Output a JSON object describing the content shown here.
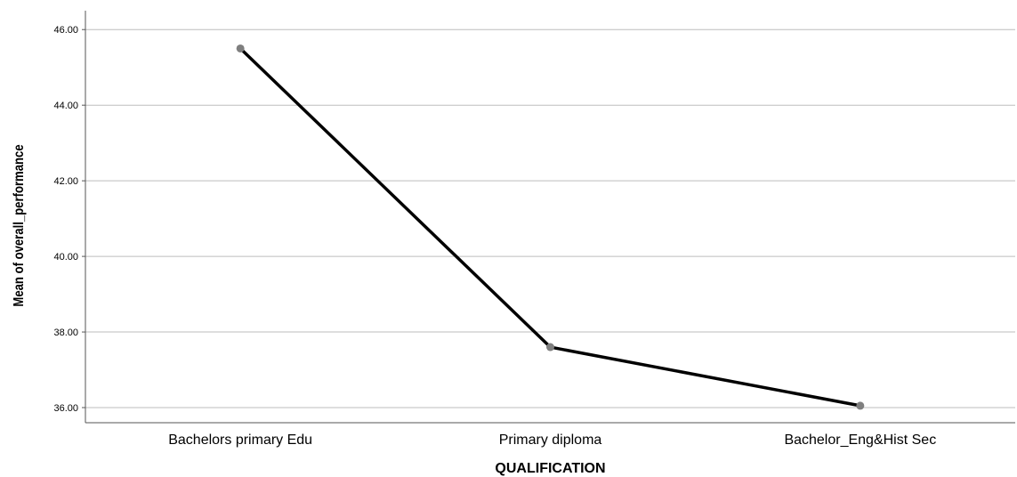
{
  "chart_data": {
    "type": "line",
    "title": "",
    "xlabel": "QUALIFICATION",
    "ylabel": "Mean of overall_performance",
    "categories": [
      "Bachelors primary Edu",
      "Primary diploma",
      "Bachelor_Eng&Hist Sec"
    ],
    "series": [
      {
        "values": [
          45.5,
          37.6,
          36.05
        ]
      }
    ],
    "ylim": [
      35.6,
      46.5
    ],
    "yticks": [
      "36.00",
      "38.00",
      "40.00",
      "42.00",
      "44.00",
      "46.00"
    ],
    "grid": true,
    "colors": {
      "line": "#000000",
      "marker": "#7f7f7f",
      "grid": "#bdbdbd",
      "axis": "#555555"
    }
  }
}
